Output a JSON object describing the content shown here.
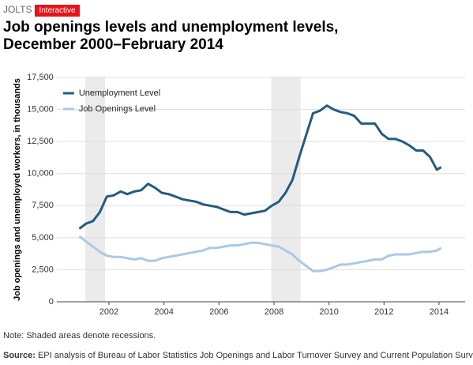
{
  "header": {
    "section": "JOLTS",
    "badge": "Interactive"
  },
  "chart_data": {
    "type": "line",
    "title": "Job openings levels and unemployment levels, December 2000–February 2014",
    "y_label": "Job openings and unemployed workers, in thousands",
    "note": "Note: Shaded areas denote recessions.",
    "source_label": "Source:",
    "source_text": "EPI analysis of Bureau of Labor Statistics Job Openings and Labor Turnover Survey and Current Population Survey",
    "x": [
      2000.92,
      2001.17,
      2001.42,
      2001.67,
      2001.92,
      2002.17,
      2002.42,
      2002.67,
      2002.92,
      2003.17,
      2003.42,
      2003.67,
      2003.92,
      2004.17,
      2004.42,
      2004.67,
      2004.92,
      2005.17,
      2005.42,
      2005.67,
      2005.92,
      2006.17,
      2006.42,
      2006.67,
      2006.92,
      2007.17,
      2007.42,
      2007.67,
      2007.92,
      2008.17,
      2008.42,
      2008.67,
      2008.92,
      2009.17,
      2009.42,
      2009.67,
      2009.92,
      2010.17,
      2010.42,
      2010.67,
      2010.92,
      2011.17,
      2011.42,
      2011.67,
      2011.92,
      2012.17,
      2012.42,
      2012.67,
      2012.92,
      2013.17,
      2013.42,
      2013.67,
      2013.92,
      2014.08
    ],
    "series": [
      {
        "name": "Unemployment Level",
        "color": "#245b80",
        "values": [
          5700,
          6100,
          6300,
          7000,
          8200,
          8300,
          8600,
          8400,
          8600,
          8700,
          9200,
          8900,
          8500,
          8400,
          8200,
          8000,
          7900,
          7800,
          7600,
          7500,
          7400,
          7200,
          7000,
          7000,
          6800,
          6900,
          7000,
          7100,
          7500,
          7800,
          8500,
          9500,
          11300,
          13000,
          14700,
          14900,
          15300,
          15000,
          14800,
          14700,
          14500,
          13900,
          13900,
          13900,
          13100,
          12700,
          12700,
          12500,
          12200,
          11800,
          11800,
          11300,
          10300,
          10500
        ]
      },
      {
        "name": "Job Openings Level",
        "color": "#a9c9e7",
        "values": [
          5100,
          4700,
          4300,
          3900,
          3600,
          3500,
          3500,
          3400,
          3300,
          3400,
          3200,
          3200,
          3400,
          3500,
          3600,
          3700,
          3800,
          3900,
          4000,
          4200,
          4200,
          4300,
          4400,
          4400,
          4500,
          4600,
          4600,
          4500,
          4400,
          4300,
          4000,
          3700,
          3200,
          2800,
          2400,
          2400,
          2500,
          2700,
          2900,
          2900,
          3000,
          3100,
          3200,
          3300,
          3300,
          3600,
          3700,
          3700,
          3700,
          3800,
          3900,
          3900,
          4000,
          4200
        ]
      }
    ],
    "recessions": [
      [
        2001.14,
        2001.86
      ],
      [
        2007.9,
        2008.97
      ]
    ],
    "xlim": [
      2000.1,
      2014.95
    ],
    "xticks": [
      2002,
      2004,
      2006,
      2008,
      2010,
      2012,
      2014
    ],
    "ylim": [
      0,
      17500
    ],
    "yticks": [
      0,
      {
        "value": 2500,
        "label": "2,500"
      },
      {
        "value": 5000,
        "label": "5,000"
      },
      {
        "value": 7500,
        "label": "7,500"
      },
      {
        "value": 10000,
        "label": "10,000"
      },
      {
        "value": 12500,
        "label": "12,500"
      },
      {
        "value": 15000,
        "label": "15,000"
      },
      {
        "value": 17500,
        "label": "17,500"
      }
    ],
    "grid": true,
    "legend": "upper-left"
  }
}
